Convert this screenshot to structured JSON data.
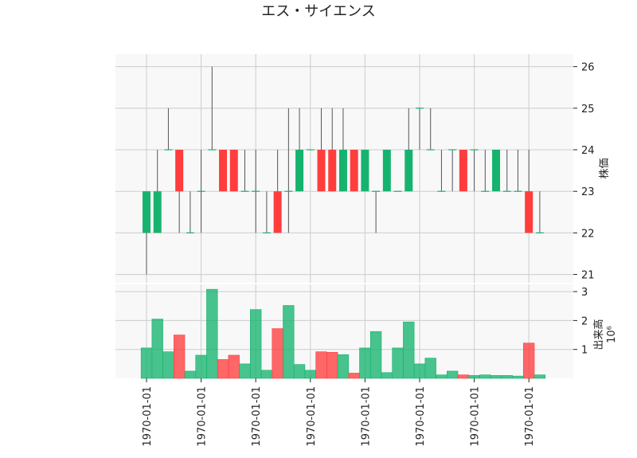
{
  "chart_data": {
    "type": "candlestick",
    "title": "エス・サイエンス",
    "price_axis": {
      "label": "株価",
      "ticks": [
        21,
        22,
        23,
        24,
        25,
        26
      ],
      "ylim": [
        20.8,
        26.3
      ]
    },
    "volume_axis": {
      "label": "出来高",
      "multiplier_label": "10⁶",
      "ticks": [
        1,
        2,
        3
      ],
      "ylim": [
        0,
        3.25
      ]
    },
    "x_tick_labels": [
      "1970-01-01",
      "1970-01-01",
      "1970-01-01",
      "1970-01-01",
      "1970-01-01",
      "1970-01-01",
      "1970-01-01",
      "1970-01-01"
    ],
    "colors": {
      "up": "#16b36e",
      "down": "#ff3d3d",
      "wick": "#555555",
      "grid": "#cccccc",
      "panel_bg": "#f8f8f8"
    },
    "candles": [
      {
        "open": 22,
        "high": 23,
        "low": 21,
        "close": 23,
        "volume": 1.05
      },
      {
        "open": 22,
        "high": 24,
        "low": 22,
        "close": 23,
        "volume": 2.05
      },
      {
        "open": 24,
        "high": 25,
        "low": 24,
        "close": 24,
        "volume": 0.92
      },
      {
        "open": 24,
        "high": 24,
        "low": 22,
        "close": 23,
        "volume": 1.5
      },
      {
        "open": 22,
        "high": 23,
        "low": 22,
        "close": 22,
        "volume": 0.25
      },
      {
        "open": 23,
        "high": 24,
        "low": 22,
        "close": 23,
        "volume": 0.8
      },
      {
        "open": 24,
        "high": 26,
        "low": 24,
        "close": 24,
        "volume": 3.08
      },
      {
        "open": 24,
        "high": 24,
        "low": 23,
        "close": 23,
        "volume": 0.65
      },
      {
        "open": 24,
        "high": 24,
        "low": 23,
        "close": 23,
        "volume": 0.8
      },
      {
        "open": 23,
        "high": 24,
        "low": 23,
        "close": 23,
        "volume": 0.5
      },
      {
        "open": 23,
        "high": 24,
        "low": 22,
        "close": 23,
        "volume": 2.38
      },
      {
        "open": 22,
        "high": 23,
        "low": 22,
        "close": 22,
        "volume": 0.28
      },
      {
        "open": 23,
        "high": 24,
        "low": 22,
        "close": 22,
        "volume": 1.72
      },
      {
        "open": 23,
        "high": 25,
        "low": 22,
        "close": 23,
        "volume": 2.52
      },
      {
        "open": 23,
        "high": 25,
        "low": 23,
        "close": 24,
        "volume": 0.48
      },
      {
        "open": 24,
        "high": 24,
        "low": 24,
        "close": 24,
        "volume": 0.28
      },
      {
        "open": 24,
        "high": 25,
        "low": 23,
        "close": 23,
        "volume": 0.92
      },
      {
        "open": 24,
        "high": 25,
        "low": 23,
        "close": 23,
        "volume": 0.9
      },
      {
        "open": 23,
        "high": 25,
        "low": 23,
        "close": 24,
        "volume": 0.82
      },
      {
        "open": 24,
        "high": 24,
        "low": 23,
        "close": 23,
        "volume": 0.18
      },
      {
        "open": 23,
        "high": 24,
        "low": 23,
        "close": 24,
        "volume": 1.05
      },
      {
        "open": 23,
        "high": 23,
        "low": 22,
        "close": 23,
        "volume": 1.62
      },
      {
        "open": 23,
        "high": 24,
        "low": 23,
        "close": 24,
        "volume": 0.2
      },
      {
        "open": 23,
        "high": 23,
        "low": 23,
        "close": 23,
        "volume": 1.05
      },
      {
        "open": 23,
        "high": 25,
        "low": 23,
        "close": 24,
        "volume": 1.95
      },
      {
        "open": 25,
        "high": 25,
        "low": 24,
        "close": 25,
        "volume": 0.5
      },
      {
        "open": 24,
        "high": 25,
        "low": 24,
        "close": 24,
        "volume": 0.7
      },
      {
        "open": 23,
        "high": 24,
        "low": 23,
        "close": 23,
        "volume": 0.12
      },
      {
        "open": 24,
        "high": 24,
        "low": 23,
        "close": 24,
        "volume": 0.25
      },
      {
        "open": 24,
        "high": 24,
        "low": 23,
        "close": 23,
        "volume": 0.12
      },
      {
        "open": 24,
        "high": 24,
        "low": 23,
        "close": 24,
        "volume": 0.1
      },
      {
        "open": 23,
        "high": 24,
        "low": 23,
        "close": 23,
        "volume": 0.12
      },
      {
        "open": 23,
        "high": 24,
        "low": 23,
        "close": 24,
        "volume": 0.1
      },
      {
        "open": 23,
        "high": 24,
        "low": 23,
        "close": 23,
        "volume": 0.1
      },
      {
        "open": 23,
        "high": 24,
        "low": 23,
        "close": 23,
        "volume": 0.08
      },
      {
        "open": 23,
        "high": 24,
        "low": 22,
        "close": 22,
        "volume": 1.22
      },
      {
        "open": 22,
        "high": 23,
        "low": 22,
        "close": 22,
        "volume": 0.12
      }
    ]
  }
}
